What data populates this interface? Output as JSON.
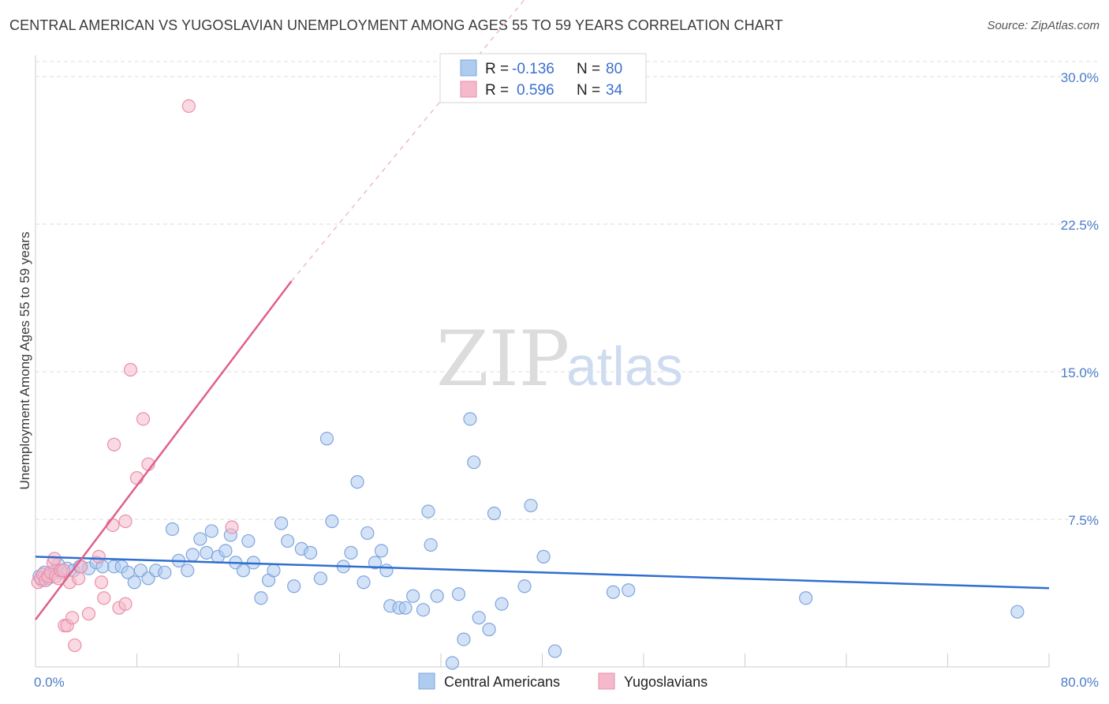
{
  "title": "CENTRAL AMERICAN VS YUGOSLAVIAN UNEMPLOYMENT AMONG AGES 55 TO 59 YEARS CORRELATION CHART",
  "source": "Source: ZipAtlas.com",
  "watermark": {
    "zip": "ZIP",
    "atlas": "atlas"
  },
  "legend": {
    "rows": [
      {
        "r_label": "R =",
        "r_value": "-0.136",
        "n_label": "N =",
        "n_value": "80"
      },
      {
        "r_label": "R =",
        "r_value": "0.596",
        "n_label": "N =",
        "n_value": "34"
      }
    ]
  },
  "colors": {
    "blue_fill": "#aecbf0",
    "blue_stroke": "#7ea6dc",
    "blue_line": "#2f6fcf",
    "pink_fill": "#f6b9cb",
    "pink_stroke": "#e98fab",
    "pink_line": "#e0608a",
    "grid": "#dddddd",
    "axis_text": "#4a7cc9"
  },
  "chart_data": {
    "type": "scatter",
    "title": "CENTRAL AMERICAN VS YUGOSLAVIAN UNEMPLOYMENT AMONG AGES 55 TO 59 YEARS CORRELATION CHART",
    "xlabel": "",
    "ylabel": "Unemployment Among Ages 55 to 59 years",
    "xlim": [
      0,
      80
    ],
    "ylim": [
      0,
      30.8
    ],
    "x_tick_labels": [
      "0.0%",
      "80.0%"
    ],
    "y_ticks": [
      7.5,
      15.0,
      22.5,
      30.0
    ],
    "y_tick_labels": [
      "7.5%",
      "15.0%",
      "22.5%",
      "30.0%"
    ],
    "grid": true,
    "legend_position": "top-center",
    "series": [
      {
        "name": "Central Americans",
        "color": "#aecbf0",
        "points": [
          [
            0.3,
            4.6
          ],
          [
            0.5,
            4.4
          ],
          [
            0.7,
            4.8
          ],
          [
            1.0,
            4.5
          ],
          [
            1.3,
            4.7
          ],
          [
            1.6,
            4.9
          ],
          [
            2.0,
            4.8
          ],
          [
            2.5,
            5.0
          ],
          [
            3.0,
            4.9
          ],
          [
            3.5,
            5.1
          ],
          [
            4.2,
            5.0
          ],
          [
            4.8,
            5.3
          ],
          [
            5.3,
            5.1
          ],
          [
            6.2,
            5.1
          ],
          [
            6.8,
            5.1
          ],
          [
            7.3,
            4.8
          ],
          [
            7.8,
            4.3
          ],
          [
            8.3,
            4.9
          ],
          [
            8.9,
            4.5
          ],
          [
            9.5,
            4.9
          ],
          [
            10.2,
            4.8
          ],
          [
            10.8,
            7.0
          ],
          [
            11.3,
            5.4
          ],
          [
            12.0,
            4.9
          ],
          [
            12.4,
            5.7
          ],
          [
            13.0,
            6.5
          ],
          [
            13.5,
            5.8
          ],
          [
            13.9,
            6.9
          ],
          [
            14.4,
            5.6
          ],
          [
            15.0,
            5.9
          ],
          [
            15.4,
            6.7
          ],
          [
            15.8,
            5.3
          ],
          [
            16.4,
            4.9
          ],
          [
            16.8,
            6.4
          ],
          [
            17.2,
            5.3
          ],
          [
            17.8,
            3.5
          ],
          [
            18.4,
            4.4
          ],
          [
            18.8,
            4.9
          ],
          [
            19.4,
            7.3
          ],
          [
            19.9,
            6.4
          ],
          [
            20.4,
            4.1
          ],
          [
            21.0,
            6.0
          ],
          [
            21.7,
            5.8
          ],
          [
            22.5,
            4.5
          ],
          [
            23.0,
            11.6
          ],
          [
            23.4,
            7.4
          ],
          [
            24.3,
            5.1
          ],
          [
            24.9,
            5.8
          ],
          [
            25.4,
            9.4
          ],
          [
            25.9,
            4.3
          ],
          [
            26.2,
            6.8
          ],
          [
            26.8,
            5.3
          ],
          [
            27.3,
            5.9
          ],
          [
            27.7,
            4.9
          ],
          [
            28.0,
            3.1
          ],
          [
            28.7,
            3.0
          ],
          [
            29.2,
            3.0
          ],
          [
            29.8,
            3.6
          ],
          [
            30.6,
            2.9
          ],
          [
            31.0,
            7.9
          ],
          [
            31.2,
            6.2
          ],
          [
            31.7,
            3.6
          ],
          [
            32.9,
            0.2
          ],
          [
            33.4,
            3.7
          ],
          [
            33.8,
            1.4
          ],
          [
            34.3,
            12.6
          ],
          [
            34.6,
            10.4
          ],
          [
            35.0,
            2.5
          ],
          [
            35.8,
            1.9
          ],
          [
            36.2,
            7.8
          ],
          [
            36.8,
            3.2
          ],
          [
            38.6,
            4.1
          ],
          [
            39.1,
            8.2
          ],
          [
            40.1,
            5.6
          ],
          [
            41.0,
            0.8
          ],
          [
            45.6,
            3.8
          ],
          [
            46.8,
            3.9
          ],
          [
            60.8,
            3.5
          ],
          [
            77.5,
            2.8
          ],
          [
            1.8,
            5.2
          ]
        ]
      },
      {
        "name": "Yugoslavians",
        "color": "#f6b9cb",
        "points": [
          [
            0.2,
            4.3
          ],
          [
            0.4,
            4.5
          ],
          [
            0.6,
            4.7
          ],
          [
            0.8,
            4.4
          ],
          [
            1.0,
            4.6
          ],
          [
            1.2,
            4.8
          ],
          [
            1.4,
            5.3
          ],
          [
            1.5,
            5.5
          ],
          [
            1.6,
            4.6
          ],
          [
            1.8,
            4.5
          ],
          [
            2.0,
            4.9
          ],
          [
            2.2,
            4.9
          ],
          [
            2.3,
            2.1
          ],
          [
            2.5,
            2.1
          ],
          [
            2.7,
            4.3
          ],
          [
            2.9,
            2.5
          ],
          [
            3.1,
            1.1
          ],
          [
            3.4,
            4.5
          ],
          [
            3.6,
            5.1
          ],
          [
            4.2,
            2.7
          ],
          [
            5.0,
            5.6
          ],
          [
            5.2,
            4.3
          ],
          [
            5.4,
            3.5
          ],
          [
            6.1,
            7.2
          ],
          [
            6.2,
            11.3
          ],
          [
            6.6,
            3.0
          ],
          [
            7.1,
            7.4
          ],
          [
            7.1,
            3.2
          ],
          [
            7.5,
            15.1
          ],
          [
            8.0,
            9.6
          ],
          [
            8.5,
            12.6
          ],
          [
            8.9,
            10.3
          ],
          [
            12.1,
            28.5
          ],
          [
            15.5,
            7.1
          ]
        ]
      }
    ],
    "trend_lines": [
      {
        "series": "Central Americans",
        "x": [
          0,
          80
        ],
        "y": [
          5.6,
          4.0
        ]
      },
      {
        "series": "Yugoslavians",
        "x": [
          0,
          20.2
        ],
        "y": [
          2.4,
          19.6
        ],
        "dashed_extension_to": [
          40,
          35.0
        ]
      }
    ]
  },
  "bottom_legend": {
    "items": [
      "Central Americans",
      "Yugoslavians"
    ]
  }
}
